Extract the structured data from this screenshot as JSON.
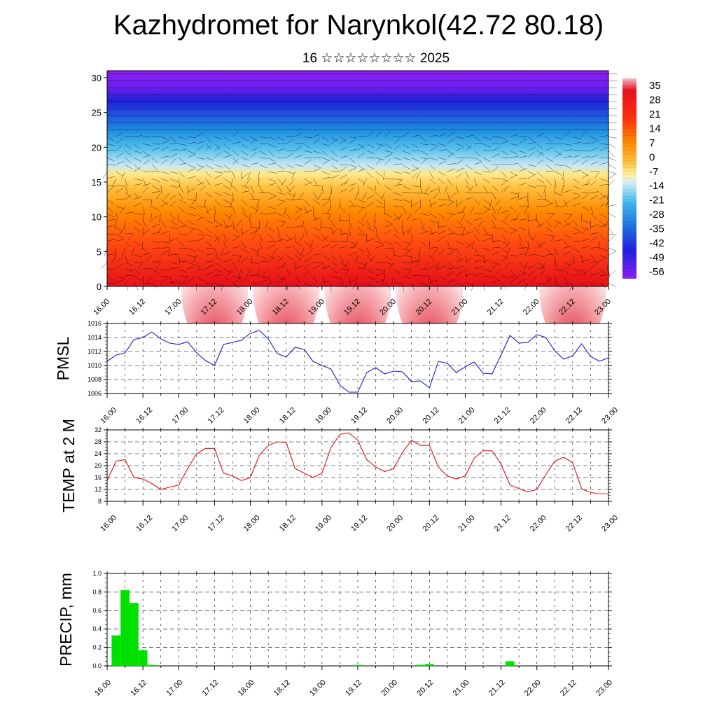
{
  "title": "Kazhydromet for Narynkol(42.72 80.18)",
  "subtitle": "16 ☆☆☆☆☆☆☆☆ 2025",
  "time_ticks": [
    "16.00",
    "16.12",
    "17.00",
    "17.12",
    "18.00",
    "18.12",
    "19.00",
    "19.12",
    "20.00",
    "20.12",
    "21.00",
    "21.12",
    "22.00",
    "22.12",
    "23.00"
  ],
  "chart_data": [
    {
      "type": "heatmap",
      "title": "",
      "description_note": "Vertical temperature cross-section with wind barbs",
      "y_ticks": [
        0,
        5,
        10,
        15,
        20,
        25,
        30
      ],
      "ylim": [
        0,
        31
      ],
      "colorbar_labels": [
        "35",
        "28",
        "21",
        "14",
        "7",
        "0",
        "-7",
        "-14",
        "-21",
        "-28",
        "-35",
        "-42",
        "-49",
        "-56"
      ],
      "colors": {
        "hot": "#e8101a",
        "warm": "#ff8a00",
        "mild": "#ffe07a",
        "cool": "#a9dcf2",
        "cold": "#1e90e0",
        "deep": "#2020e0",
        "top": "#8a20f0"
      }
    },
    {
      "type": "line",
      "ylabel": "PMSL",
      "ylim": [
        1006,
        1016
      ],
      "y_ticks": [
        1006,
        1008,
        1010,
        1012,
        1014,
        1016
      ],
      "color": "#1a1ad0",
      "x": [
        0,
        3,
        6,
        9,
        12,
        15,
        18,
        21,
        24,
        27,
        30,
        33,
        36,
        39,
        42,
        45,
        48,
        51,
        54,
        57,
        60,
        63,
        66,
        69,
        72,
        75,
        78,
        81,
        84,
        87,
        90,
        93,
        96,
        99,
        102,
        105,
        108,
        111,
        114,
        117,
        120,
        123,
        126,
        129,
        132,
        135,
        138,
        141,
        144,
        147,
        150,
        153,
        156,
        159,
        162,
        165,
        168
      ],
      "values": [
        1010.6,
        1011.5,
        1011.8,
        1013.7,
        1014.0,
        1014.8,
        1013.8,
        1013.2,
        1013.0,
        1013.4,
        1011.8,
        1010.7,
        1010.0,
        1013.0,
        1013.3,
        1013.6,
        1014.6,
        1015.0,
        1013.8,
        1011.7,
        1011.2,
        1012.6,
        1012.3,
        1010.6,
        1010.0,
        1009.5,
        1007.2,
        1006.2,
        1006.2,
        1009.0,
        1009.7,
        1008.8,
        1009.2,
        1009.1,
        1007.7,
        1007.8,
        1006.8,
        1010.6,
        1010.3,
        1009.0,
        1009.8,
        1010.5,
        1008.9,
        1008.8,
        1011.5,
        1014.3,
        1013.2,
        1013.3,
        1014.4,
        1014.0,
        1012.1,
        1010.9,
        1011.4,
        1013.1,
        1011.3,
        1010.6,
        1011.1
      ]
    },
    {
      "type": "line",
      "ylabel": "TEMP at 2 M",
      "ylim": [
        8,
        32
      ],
      "y_ticks": [
        8,
        12,
        16,
        20,
        24,
        28,
        32
      ],
      "color": "#e01010",
      "x": [
        0,
        3,
        6,
        9,
        12,
        15,
        18,
        21,
        24,
        27,
        30,
        33,
        36,
        39,
        42,
        45,
        48,
        51,
        54,
        57,
        60,
        63,
        66,
        69,
        72,
        75,
        78,
        81,
        84,
        87,
        90,
        93,
        96,
        99,
        102,
        105,
        108,
        111,
        114,
        117,
        120,
        123,
        126,
        129,
        132,
        135,
        138,
        141,
        144,
        147,
        150,
        153,
        156,
        159,
        162,
        165,
        168
      ],
      "values": [
        15.0,
        21.5,
        22.0,
        16.0,
        15.5,
        14.0,
        12.0,
        12.8,
        13.5,
        19.0,
        24.0,
        25.8,
        25.8,
        17.5,
        16.5,
        15.0,
        16.0,
        23.5,
        26.8,
        28.0,
        27.8,
        19.0,
        17.5,
        16.0,
        17.5,
        26.0,
        30.5,
        31.0,
        28.5,
        22.0,
        19.5,
        18.0,
        19.0,
        24.5,
        28.5,
        26.8,
        26.8,
        19.5,
        16.5,
        15.5,
        16.5,
        22.5,
        25.0,
        25.0,
        20.5,
        13.5,
        12.3,
        11.2,
        12.0,
        17.0,
        21.5,
        22.8,
        21.0,
        12.2,
        11.0,
        10.5,
        10.5
      ]
    },
    {
      "type": "bar",
      "ylabel": "PRECIP, mm",
      "ylim": [
        0,
        1.0
      ],
      "y_ticks": [
        "0.0",
        "0.2",
        "0.4",
        "0.6",
        "0.8",
        "1.0"
      ],
      "color": "#00e000",
      "x": [
        3,
        6,
        9,
        12,
        15,
        84,
        105,
        108,
        135
      ],
      "values": [
        0.33,
        0.82,
        0.68,
        0.17,
        0.01,
        0.01,
        0.01,
        0.02,
        0.05
      ]
    }
  ]
}
